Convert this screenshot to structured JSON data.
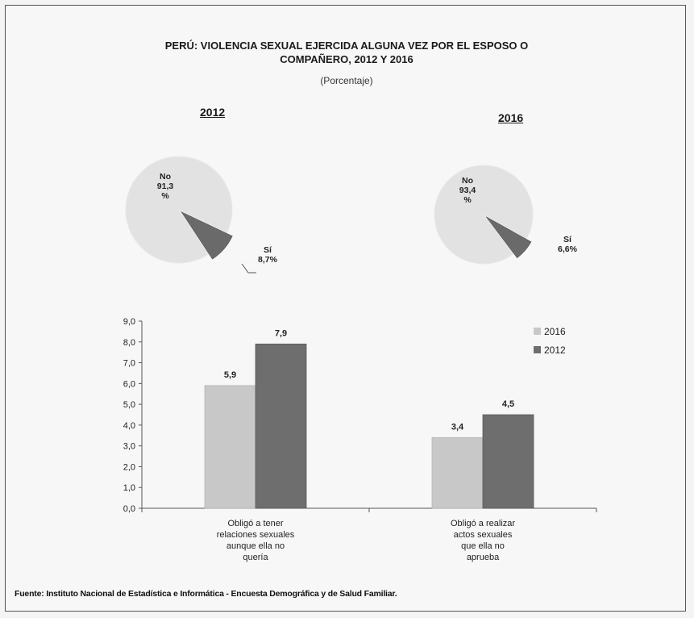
{
  "title_line1": "PERÚ: VIOLENCIA SEXUAL EJERCIDA ALGUNA VEZ POR EL ESPOSO O",
  "title_line2": "COMPAÑERO, 2012 Y 2016",
  "subtitle": "(Porcentaje)",
  "source": "Fuente: Instituto Nacional de Estadística e Informática - Encuesta Demográfica y de Salud Familiar.",
  "colors": {
    "pie_main": "#e2e2e2",
    "pie_slice": "#6a6a6a",
    "bar_2016": "#c8c8c8",
    "bar_2012": "#6e6e6e"
  },
  "chart_data": [
    {
      "type": "pie",
      "title": "2012",
      "slices": [
        {
          "label": "No",
          "value": 91.3,
          "value_label_lines": [
            "91,3",
            "%"
          ]
        },
        {
          "label": "Sí",
          "value": 8.7,
          "value_label_lines": [
            "8,7%"
          ]
        }
      ]
    },
    {
      "type": "pie",
      "title": "2016",
      "slices": [
        {
          "label": "No",
          "value": 93.4,
          "value_label_lines": [
            "93,4",
            "%"
          ]
        },
        {
          "label": "Sí",
          "value": 6.6,
          "value_label_lines": [
            "6,6%"
          ]
        }
      ]
    },
    {
      "type": "bar",
      "categories": [
        [
          "Obligó a tener",
          "relaciones sexuales",
          "aunque  ella no",
          "quería"
        ],
        [
          "Obligó a realizar",
          "actos sexuales",
          "que ella no",
          "aprueba"
        ]
      ],
      "series": [
        {
          "name": "2016",
          "values": [
            5.9,
            3.4
          ],
          "labels": [
            "5,9",
            "3,4"
          ]
        },
        {
          "name": "2012",
          "values": [
            7.9,
            4.5
          ],
          "labels": [
            "7,9",
            "4,5"
          ]
        }
      ],
      "ylim": [
        0,
        9
      ],
      "yticks": [
        "0,0",
        "1,0",
        "2,0",
        "3,0",
        "4,0",
        "5,0",
        "6,0",
        "7,0",
        "8,0",
        "9,0"
      ],
      "legend": "top-right",
      "grid": false
    }
  ]
}
